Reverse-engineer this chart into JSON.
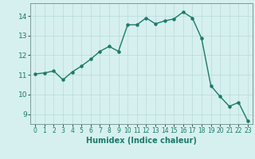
{
  "x": [
    0,
    1,
    2,
    3,
    4,
    5,
    6,
    7,
    8,
    9,
    10,
    11,
    12,
    13,
    14,
    15,
    16,
    17,
    18,
    19,
    20,
    21,
    22,
    23
  ],
  "y": [
    11.05,
    11.1,
    11.2,
    10.75,
    11.15,
    11.45,
    11.8,
    12.2,
    12.45,
    12.2,
    13.55,
    13.55,
    13.9,
    13.6,
    13.75,
    13.85,
    14.2,
    13.9,
    12.85,
    10.45,
    9.9,
    9.4,
    9.6,
    8.65
  ],
  "line_color": "#1a7a6a",
  "marker": "o",
  "markersize": 2.2,
  "linewidth": 1.0,
  "bg_color": "#d6f0ef",
  "grid_color": "#b8dada",
  "xlabel": "Humidex (Indice chaleur)",
  "xlabel_fontsize": 7,
  "tick_fontsize": 6.5,
  "xlim": [
    -0.5,
    23.5
  ],
  "ylim": [
    8.5,
    14.65
  ],
  "yticks": [
    9,
    10,
    11,
    12,
    13,
    14
  ],
  "xticks": [
    0,
    1,
    2,
    3,
    4,
    5,
    6,
    7,
    8,
    9,
    10,
    11,
    12,
    13,
    14,
    15,
    16,
    17,
    18,
    19,
    20,
    21,
    22,
    23
  ]
}
